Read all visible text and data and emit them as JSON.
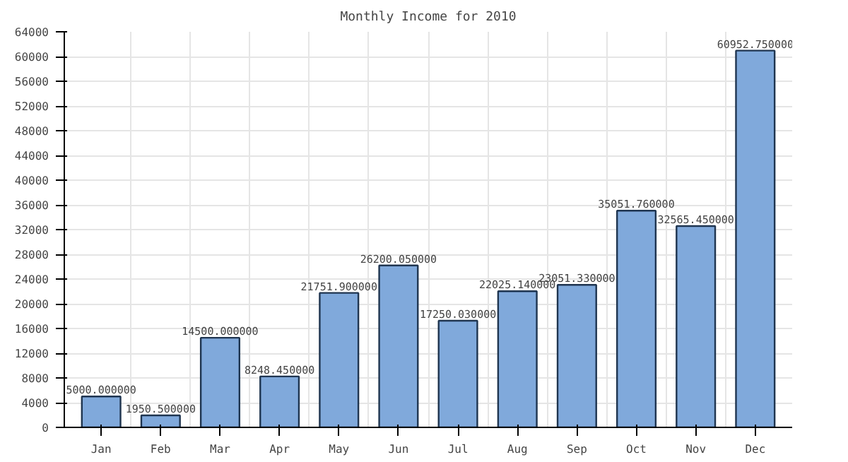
{
  "chart_data": {
    "type": "bar",
    "title": "Monthly Income for 2010",
    "categories": [
      "Jan",
      "Feb",
      "Mar",
      "Apr",
      "May",
      "Jun",
      "Jul",
      "Aug",
      "Sep",
      "Oct",
      "Nov",
      "Dec"
    ],
    "values": [
      5000,
      1950.5,
      14500,
      8248.45,
      21751.9,
      26200.05,
      17250.03,
      22025.14,
      23051.33,
      35051.76,
      32565.45,
      60952.75
    ],
    "value_labels": [
      "5000.000000",
      "1950.500000",
      "14500.000000",
      "8248.450000",
      "21751.900000",
      "26200.050000",
      "17250.030000",
      "22025.140000",
      "23051.330000",
      "35051.760000",
      "32565.450000",
      "60952.750000"
    ],
    "color": "#80a9db",
    "ylim": [
      0,
      64000
    ],
    "yticks": [
      0,
      4000,
      8000,
      12000,
      16000,
      20000,
      24000,
      28000,
      32000,
      36000,
      40000,
      44000,
      48000,
      52000,
      56000,
      60000,
      64000
    ],
    "grid": true
  }
}
